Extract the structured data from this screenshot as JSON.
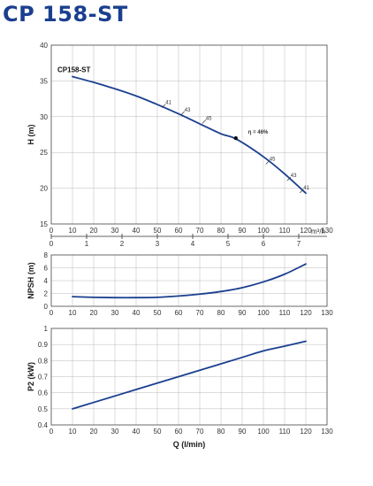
{
  "title": "CP 158-ST",
  "colors": {
    "title": "#1b3f8f",
    "curve": "#1b3f8f"
  },
  "chart_data": [
    {
      "type": "line",
      "ylabel": "H (m)",
      "xlim": [
        0,
        130
      ],
      "ylim": [
        15,
        40
      ],
      "x_ticks": [
        0,
        10,
        20,
        30,
        40,
        50,
        60,
        70,
        80,
        90,
        100,
        110,
        120,
        130
      ],
      "y_ticks": [
        15,
        20,
        25,
        30,
        35,
        40
      ],
      "secondary_x_ticks": [
        "0",
        "1",
        "2",
        "3",
        "4",
        "5",
        "6",
        "7"
      ],
      "secondary_x_unit": "m³/h",
      "curve_label": "CP158-ST",
      "series": [
        {
          "x": [
            10,
            20,
            30,
            40,
            50,
            60,
            70,
            80,
            87,
            100,
            110,
            120
          ],
          "values": [
            35.6,
            34.8,
            33.9,
            32.9,
            31.7,
            30.4,
            29.0,
            27.6,
            26.9,
            24.4,
            22.0,
            19.3
          ]
        }
      ],
      "efficiency_annotations": [
        {
          "label": "41",
          "x": 53,
          "y": 31.5
        },
        {
          "label": "43",
          "x": 62,
          "y": 30.5
        },
        {
          "label": "45",
          "x": 72,
          "y": 29.3
        },
        {
          "label": "η = 46%",
          "x": 87,
          "y": 27.0
        },
        {
          "label": "45",
          "x": 102,
          "y": 23.6
        },
        {
          "label": "43",
          "x": 112,
          "y": 21.3
        },
        {
          "label": "41",
          "x": 118,
          "y": 19.6
        }
      ]
    },
    {
      "type": "line",
      "ylabel": "NPSH (m)",
      "xlim": [
        0,
        130
      ],
      "ylim": [
        0,
        8
      ],
      "x_ticks": [
        0,
        10,
        20,
        30,
        40,
        50,
        60,
        70,
        80,
        90,
        100,
        110,
        120,
        130
      ],
      "y_ticks": [
        0,
        2,
        4,
        6,
        8
      ],
      "series": [
        {
          "x": [
            10,
            20,
            30,
            40,
            50,
            60,
            70,
            80,
            90,
            100,
            110,
            120
          ],
          "values": [
            1.5,
            1.4,
            1.35,
            1.35,
            1.4,
            1.6,
            1.9,
            2.3,
            2.9,
            3.8,
            5.0,
            6.6
          ]
        }
      ]
    },
    {
      "type": "line",
      "xlabel": "Q (l/min)",
      "ylabel": "P2 (kW)",
      "xlim": [
        0,
        130
      ],
      "ylim": [
        0.4,
        1
      ],
      "x_ticks": [
        0,
        10,
        20,
        30,
        40,
        50,
        60,
        70,
        80,
        90,
        100,
        110,
        120,
        130
      ],
      "y_ticks": [
        "0.4",
        "0.5",
        "0.6",
        "0.7",
        "0.8",
        "0.9",
        "1"
      ],
      "series": [
        {
          "x": [
            10,
            20,
            30,
            40,
            50,
            60,
            70,
            80,
            90,
            100,
            110,
            120
          ],
          "values": [
            0.5,
            0.54,
            0.58,
            0.62,
            0.66,
            0.7,
            0.74,
            0.78,
            0.82,
            0.86,
            0.89,
            0.92
          ]
        }
      ]
    }
  ]
}
